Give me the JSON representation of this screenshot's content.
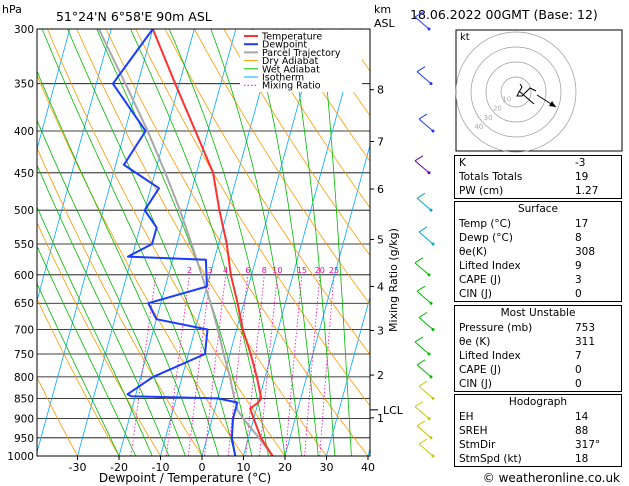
{
  "header": {
    "location": "51°24'N  6°58'E  90m  ASL",
    "datetime": "18.06.2022  00GMT  (Base: 12)",
    "hpa_label": "hPa",
    "km_label": "km",
    "asl_label": "ASL",
    "mixing_ratio_label": "Mixing Ratio (g/kg)",
    "credit": "© weatheronline.co.uk"
  },
  "colors": {
    "temperature": "#ff3030",
    "dewpoint": "#1a3cff",
    "parcel": "#a8a8a8",
    "dry_adiabat": "#ff9a00",
    "wet_adiabat": "#00bb00",
    "isotherm": "#00a8ff",
    "mixing_ratio": "#ff00aa"
  },
  "legend": [
    "Temperature",
    "Dewpoint",
    "Parcel Trajectory",
    "Dry Adiabat",
    "Wet Adiabat",
    "Isotherm",
    "Mixing Ratio"
  ],
  "chart_data": {
    "type": "line",
    "subtype": "skew-T log-P",
    "xlabel": "Dewpoint / Temperature (°C)",
    "ylabel": "hPa",
    "x_ticks": [
      -30,
      -20,
      -10,
      0,
      10,
      20,
      30,
      40
    ],
    "pressure_ticks": [
      300,
      350,
      400,
      450,
      500,
      550,
      600,
      650,
      700,
      750,
      800,
      850,
      900,
      950,
      1000
    ],
    "pressure_range": [
      300,
      1000
    ],
    "km_ticks": [
      {
        "label": "8",
        "p": 356
      },
      {
        "label": "7",
        "p": 412
      },
      {
        "label": "6",
        "p": 471
      },
      {
        "label": "5",
        "p": 543
      },
      {
        "label": "4",
        "p": 620
      },
      {
        "label": "3",
        "p": 702
      },
      {
        "label": "2",
        "p": 796
      },
      {
        "label": "1",
        "p": 898
      }
    ],
    "lcl": {
      "label": "LCL",
      "p": 878
    },
    "mixing_ratio_values": [
      1,
      2,
      3,
      4,
      6,
      8,
      10,
      15,
      20,
      25
    ],
    "mixing_ratio_labels": [
      "2",
      "3",
      "4",
      "6",
      "8",
      "10",
      "15",
      "20",
      "25"
    ],
    "series": [
      {
        "name": "Temperature",
        "points": [
          {
            "p": 1000,
            "t": 17
          },
          {
            "p": 950,
            "t": 13
          },
          {
            "p": 900,
            "t": 10
          },
          {
            "p": 875,
            "t": 8.5
          },
          {
            "p": 860,
            "t": 10
          },
          {
            "p": 850,
            "t": 10.5
          },
          {
            "p": 800,
            "t": 8
          },
          {
            "p": 750,
            "t": 5
          },
          {
            "p": 700,
            "t": 1.5
          },
          {
            "p": 650,
            "t": -1.5
          },
          {
            "p": 600,
            "t": -5
          },
          {
            "p": 550,
            "t": -8
          },
          {
            "p": 500,
            "t": -12
          },
          {
            "p": 450,
            "t": -16
          },
          {
            "p": 400,
            "t": -23
          },
          {
            "p": 350,
            "t": -31
          },
          {
            "p": 300,
            "t": -40
          }
        ]
      },
      {
        "name": "Dewpoint",
        "points": [
          {
            "p": 1000,
            "t": 8
          },
          {
            "p": 950,
            "t": 6
          },
          {
            "p": 900,
            "t": 5
          },
          {
            "p": 860,
            "t": 5
          },
          {
            "p": 850,
            "t": 0
          },
          {
            "p": 845,
            "t": -21
          },
          {
            "p": 840,
            "t": -22
          },
          {
            "p": 800,
            "t": -17
          },
          {
            "p": 750,
            "t": -6
          },
          {
            "p": 700,
            "t": -7
          },
          {
            "p": 680,
            "t": -20
          },
          {
            "p": 650,
            "t": -23
          },
          {
            "p": 620,
            "t": -10
          },
          {
            "p": 575,
            "t": -12
          },
          {
            "p": 570,
            "t": -31
          },
          {
            "p": 550,
            "t": -26
          },
          {
            "p": 525,
            "t": -26
          },
          {
            "p": 500,
            "t": -30
          },
          {
            "p": 470,
            "t": -28
          },
          {
            "p": 440,
            "t": -38
          },
          {
            "p": 400,
            "t": -35
          },
          {
            "p": 350,
            "t": -46
          },
          {
            "p": 300,
            "t": -40
          }
        ]
      },
      {
        "name": "Parcel Trajectory",
        "points": [
          {
            "p": 1000,
            "t": 17
          },
          {
            "p": 950,
            "t": 12.5
          },
          {
            "p": 900,
            "t": 7.5
          },
          {
            "p": 878,
            "t": 5.5
          },
          {
            "p": 850,
            "t": 4
          },
          {
            "p": 800,
            "t": 1.5
          },
          {
            "p": 750,
            "t": -1.5
          },
          {
            "p": 700,
            "t": -4.5
          },
          {
            "p": 650,
            "t": -8
          },
          {
            "p": 600,
            "t": -12
          },
          {
            "p": 550,
            "t": -16.5
          },
          {
            "p": 500,
            "t": -21.5
          },
          {
            "p": 450,
            "t": -27.5
          },
          {
            "p": 400,
            "t": -34.5
          },
          {
            "p": 350,
            "t": -43
          },
          {
            "p": 300,
            "t": -53
          }
        ]
      }
    ],
    "wind_levels_p": [
      300,
      350,
      400,
      450,
      500,
      550,
      600,
      650,
      700,
      750,
      800,
      850,
      900,
      950,
      1000
    ],
    "hodograph": {
      "ring_labels": [
        "10",
        "20",
        "30",
        "40"
      ],
      "unit_label": "kt"
    }
  },
  "indices": {
    "rows": [
      {
        "label": "K",
        "value": "-3"
      },
      {
        "label": "Totals Totals",
        "value": "19"
      },
      {
        "label": "PW (cm)",
        "value": "1.27"
      }
    ],
    "surface": {
      "title": "Surface",
      "rows": [
        {
          "label": "Temp (°C)",
          "value": "17"
        },
        {
          "label": "Dewp (°C)",
          "value": "8"
        },
        {
          "label": "θe(K)",
          "value": "308"
        },
        {
          "label": "Lifted Index",
          "value": "9"
        },
        {
          "label": "CAPE (J)",
          "value": "3"
        },
        {
          "label": "CIN (J)",
          "value": "0"
        }
      ]
    },
    "most_unstable": {
      "title": "Most Unstable",
      "rows": [
        {
          "label": "Pressure (mb)",
          "value": "753"
        },
        {
          "label": "θe (K)",
          "value": "311"
        },
        {
          "label": "Lifted Index",
          "value": "7"
        },
        {
          "label": "CAPE (J)",
          "value": "0"
        },
        {
          "label": "CIN (J)",
          "value": "0"
        }
      ]
    },
    "hodograph": {
      "title": "Hodograph",
      "rows": [
        {
          "label": "EH",
          "value": "14"
        },
        {
          "label": "SREH",
          "value": "88"
        },
        {
          "label": "StmDir",
          "value": "317°"
        },
        {
          "label": "StmSpd (kt)",
          "value": "18"
        }
      ]
    }
  }
}
